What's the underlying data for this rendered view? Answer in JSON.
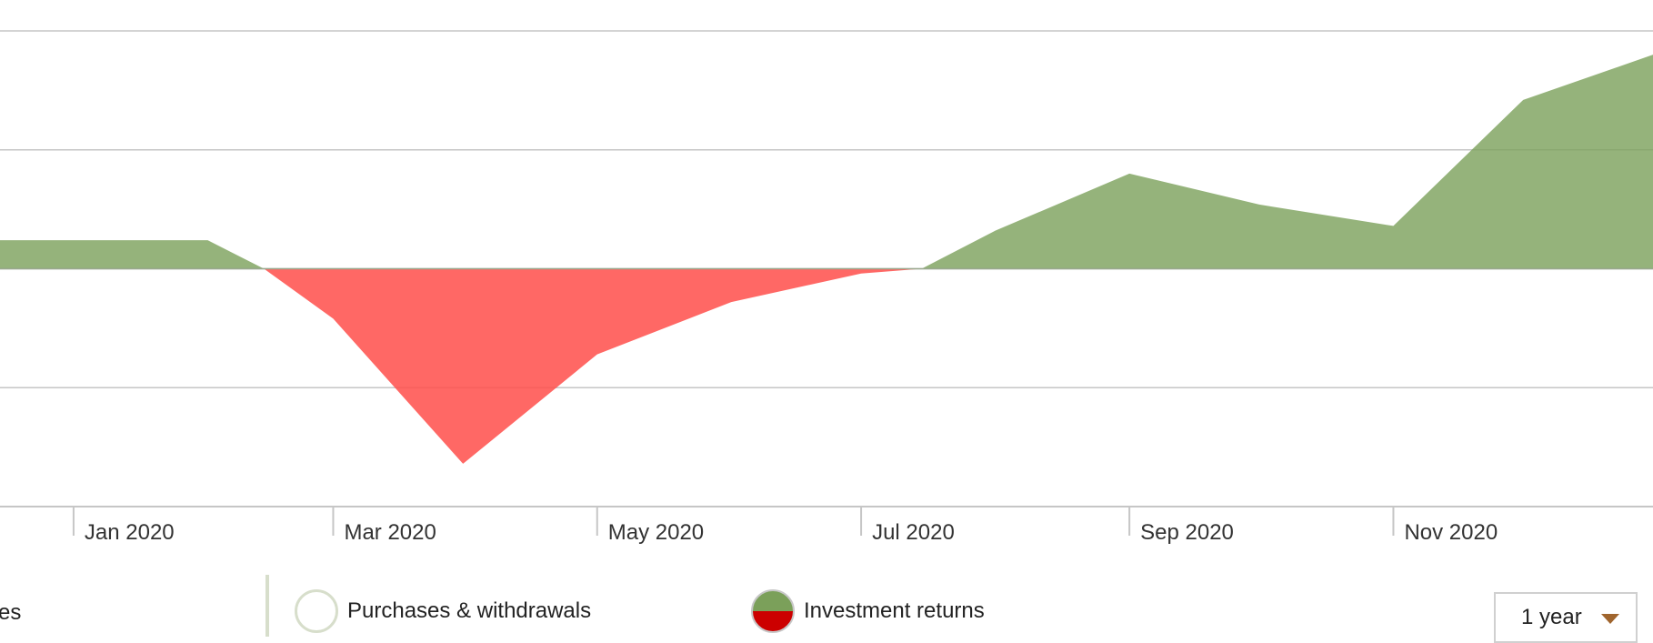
{
  "chart_data": {
    "type": "area",
    "x": [
      "2019-12-15",
      "2020-01-01",
      "2020-02-01",
      "2020-02-14",
      "2020-03-01",
      "2020-03-31",
      "2020-05-01",
      "2020-06-01",
      "2020-07-01",
      "2020-07-15",
      "2020-08-01",
      "2020-09-01",
      "2020-10-01",
      "2020-11-01",
      "2020-12-01",
      "2020-12-31"
    ],
    "y": [
      1.2,
      1.2,
      1.2,
      0,
      -2.1,
      -8.2,
      -3.6,
      -1.4,
      -0.2,
      0,
      1.6,
      4.0,
      2.7,
      1.8,
      7.1,
      9.0
    ],
    "xlim": [
      "2019-12-15",
      "2020-12-31"
    ],
    "ylim": [
      -10,
      10
    ],
    "grid": true,
    "xticks": [
      "Jan 2020",
      "Mar 2020",
      "May 2020",
      "Jul 2020",
      "Sep 2020",
      "Nov 2020"
    ],
    "positive_color": "#7ba05a",
    "negative_color": "#ff4d4a",
    "legend_position": "bottom"
  },
  "legend": {
    "left_fragment": "es",
    "purchases_label": "Purchases & withdrawals",
    "returns_label": "Investment returns"
  },
  "range_select": {
    "value": "1 year"
  }
}
